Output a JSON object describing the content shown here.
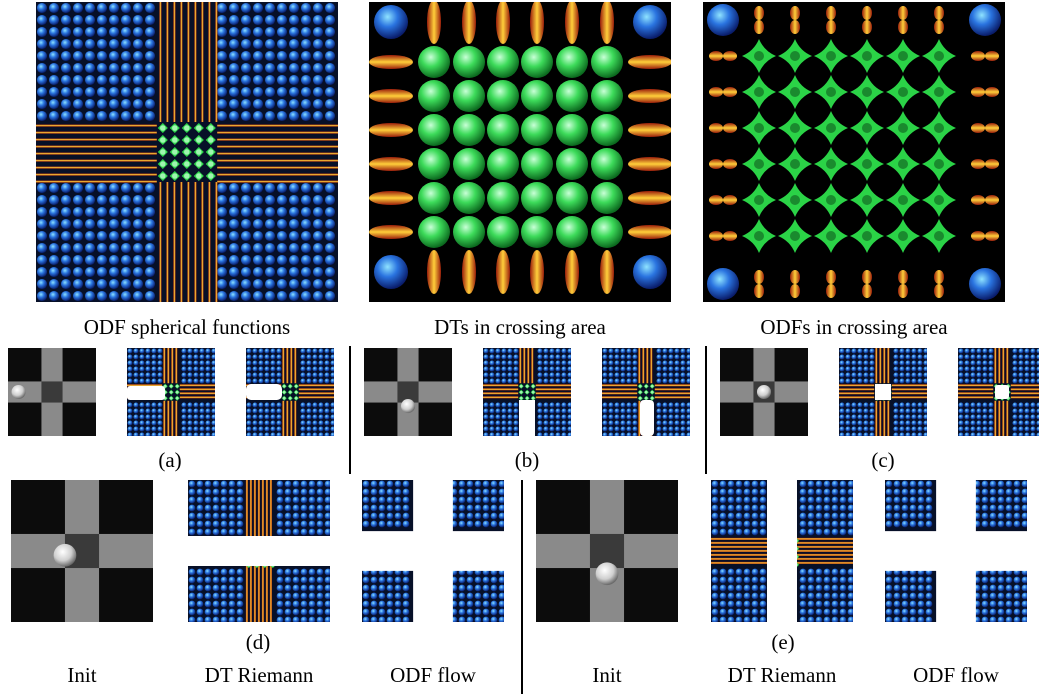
{
  "top_captions": {
    "odf_spherical": "ODF spherical functions",
    "dts_crossing": "DTs in crossing area",
    "odfs_crossing": "ODFs in crossing area"
  },
  "row2_labels": {
    "a": "(a)",
    "b": "(b)",
    "c": "(c)"
  },
  "row3_labels": {
    "d": "(d)",
    "e": "(e)",
    "init_left": "Init",
    "dt_riemann_left": "DT Riemann",
    "odf_flow_left": "ODF flow",
    "init_right": "Init",
    "dt_riemann_right": "DT Riemann",
    "odf_flow_right": "ODF flow"
  },
  "colors": {
    "background_blue": "#0d2f85",
    "crossing_green": "#2dd44a",
    "fiber_orange": "#e9892a",
    "segment_white": "#ffffff",
    "init_gray": "#8a8a8a"
  }
}
